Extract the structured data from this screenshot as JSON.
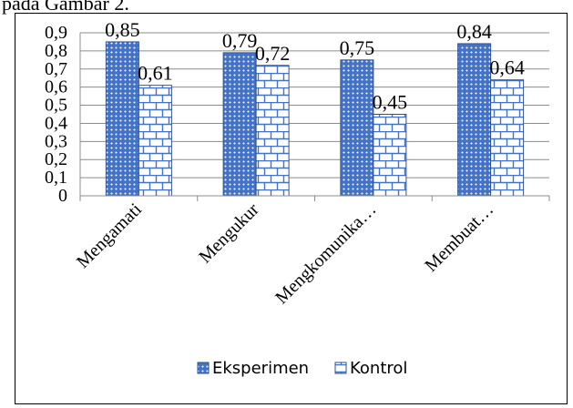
{
  "caption_fragment": "pada Gambar 2.",
  "chart_data": {
    "type": "bar",
    "categories": [
      "Mengamati",
      "Mengukur",
      "Mengkomunika…",
      "Membuat…"
    ],
    "series": [
      {
        "name": "Eksperimen",
        "values": [
          0.85,
          0.79,
          0.75,
          0.84
        ],
        "labels": [
          "0,85",
          "0,79",
          "0,75",
          "0,84"
        ]
      },
      {
        "name": "Kontrol",
        "values": [
          0.61,
          0.72,
          0.45,
          0.64
        ],
        "labels": [
          "0,61",
          "0,72",
          "0,45",
          "0,64"
        ]
      }
    ],
    "ylim": [
      0,
      0.9
    ],
    "yticks": [
      0,
      0.1,
      0.2,
      0.3,
      0.4,
      0.5,
      0.6,
      0.7,
      0.8,
      0.9
    ],
    "ytick_labels": [
      "0",
      "0,1",
      "0,2",
      "0,3",
      "0,4",
      "0,5",
      "0,6",
      "0,7",
      "0,8",
      "0,9"
    ],
    "grid": true,
    "legend_position": "bottom",
    "colors": {
      "eksperimen": "#4472c4",
      "kontrol": "#4472c4",
      "grid": "#8c8c8c"
    }
  }
}
